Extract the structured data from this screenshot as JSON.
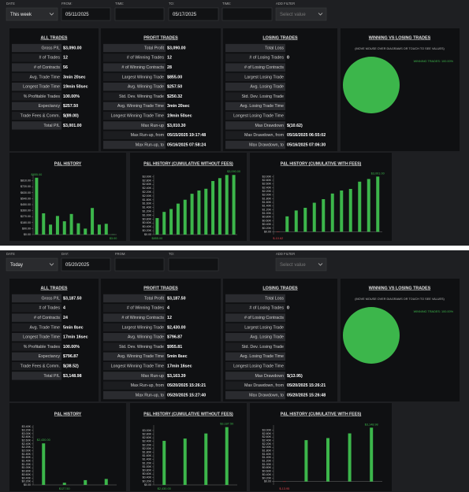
{
  "panels": [
    {
      "filters": [
        {
          "label": "DATE",
          "value": "This week"
        },
        {
          "label": "FROM:",
          "value": "05/11/2025"
        },
        {
          "label": "TIME:"
        },
        {
          "label": "TO:",
          "value": "05/17/2025"
        },
        {
          "label": "TIME:"
        },
        {
          "label": "ADD FILTER",
          "value": "Select value"
        }
      ],
      "tables": [
        {
          "title": "ALL TRADES",
          "rows": [
            [
              "Gross P/L",
              "$3,090.00"
            ],
            [
              "# of Trades",
              "12"
            ],
            [
              "# of Contracts",
              "56"
            ],
            [
              "Avg. Trade Time",
              "3min 20sec"
            ],
            [
              "Longest Trade Time",
              "19min 50sec"
            ],
            [
              "% Profitable Trades",
              "100.00%"
            ],
            [
              "Expectancy",
              "$257.50"
            ],
            [
              "Trade Fees & Comm.",
              "$(89.00)"
            ],
            [
              "Total P/L",
              "$3,001.00"
            ]
          ]
        },
        {
          "title": "PROFIT TRADES",
          "rows": [
            [
              "Total Profit",
              "$3,090.00"
            ],
            [
              "# of Winning Trades",
              "12"
            ],
            [
              "# of Winning Contracts",
              "28"
            ],
            [
              "Largest Winning Trade",
              "$855.00"
            ],
            [
              "Avg. Winning Trade",
              "$257.50"
            ],
            [
              "Std. Dev. Winning Trade",
              "$250.32"
            ],
            [
              "Avg. Winning Trade Time",
              "3min 20sec"
            ],
            [
              "Longest Winning Trade Time",
              "19min 50sec"
            ],
            [
              "Max Run-up",
              "$3,010.30"
            ],
            [
              "Max Run-up, from",
              "05/15/2025 19:17:48"
            ],
            [
              "Max Run-up, to",
              "05/16/2025 07:58:24"
            ]
          ]
        },
        {
          "title": "LOSING TRADES",
          "rows": [
            [
              "Total Loss"
            ],
            [
              "# of Losing Trades",
              "0"
            ],
            [
              "# of Losing Contracts"
            ],
            [
              "Largest Losing Trade"
            ],
            [
              "Avg. Losing Trade"
            ],
            [
              "Std. Dev. Losing Trade"
            ],
            [
              "Avg. Losing Trade Time"
            ],
            [
              "Longest Losing Trade Time"
            ],
            [
              "Max Drawdown",
              "$(10.62)"
            ],
            [
              "Max Drawdown, from",
              "05/16/2025 06:55:02"
            ],
            [
              "Max Drawdown, to",
              "05/16/2025 07:06:30"
            ]
          ]
        }
      ],
      "pie": {
        "title": "WINNING VS LOSING TRADES",
        "note": "(MOVE MOUSE OVER DIAGRAMS OR TOUCH TO SEE VALUES)",
        "legend": "WINNING TRADES: 100.00%",
        "value": 100,
        "color": "#3cb64b"
      },
      "charts": [
        {
          "type": "bar",
          "title": "P&L HISTORY",
          "values": [
            855,
            320,
            150,
            280,
            200,
            310,
            170,
            90,
            400,
            150,
            162,
            3
          ],
          "max_label": "$855.00",
          "min_label": "$3.00",
          "color": "#3cb64b",
          "ylim": [
            0,
            900
          ],
          "yticks": [
            {
              "value": 0,
              "label": "$0.00"
            },
            {
              "value": 90,
              "label": "$90.00"
            },
            {
              "value": 180,
              "label": "$180.00"
            },
            {
              "value": 270,
              "label": "$270.00"
            },
            {
              "value": 360,
              "label": "$360.00"
            },
            {
              "value": 450,
              "label": "$450.00"
            },
            {
              "value": 540,
              "label": "$540.00"
            },
            {
              "value": 630,
              "label": "$630.00"
            },
            {
              "value": 720,
              "label": "$720.00"
            },
            {
              "value": 810,
              "label": "$810.00"
            }
          ]
        },
        {
          "type": "bar",
          "title": "P&L HISTORY (CUMULATIVE WITHOUT FEES)",
          "values": [
            855,
            1175,
            1325,
            1605,
            1805,
            2115,
            2285,
            2375,
            2775,
            2925,
            3087,
            3090
          ],
          "max_label": "$3,090.00",
          "min_label": "$855.00",
          "color": "#3cb64b",
          "ylim": [
            0,
            3100
          ],
          "yticks": [
            {
              "value": 0,
              "label": "$0.00"
            },
            {
              "value": 200,
              "label": "$0.20K"
            },
            {
              "value": 400,
              "label": "$0.40K"
            },
            {
              "value": 600,
              "label": "$0.60K"
            },
            {
              "value": 800,
              "label": "$0.80K"
            },
            {
              "value": 1000,
              "label": "$1.00K"
            },
            {
              "value": 1200,
              "label": "$1.20K"
            },
            {
              "value": 1400,
              "label": "$1.40K"
            },
            {
              "value": 1600,
              "label": "$1.60K"
            },
            {
              "value": 1800,
              "label": "$1.80K"
            },
            {
              "value": 2000,
              "label": "$2.00K"
            },
            {
              "value": 2200,
              "label": "$2.20K"
            },
            {
              "value": 2400,
              "label": "$2.40K"
            },
            {
              "value": 2600,
              "label": "$2.60K"
            },
            {
              "value": 2800,
              "label": "$2.80K"
            },
            {
              "value": 3000,
              "label": "$3.00K"
            }
          ]
        },
        {
          "type": "bar",
          "title": "P&L HISTORY (CUMULATIVE WITH FEES)",
          "values": [
            -10.62,
            840,
            1160,
            1305,
            1580,
            1775,
            2080,
            2245,
            2330,
            2725,
            2870,
            3001
          ],
          "max_label": "$3,001.00",
          "min_label": "$-10.62",
          "color": "#3cb64b",
          "ylim": [
            -150,
            3100
          ],
          "yticks": [
            {
              "value": 0,
              "label": "$0.00"
            },
            {
              "value": 200,
              "label": "$0.20K"
            },
            {
              "value": 400,
              "label": "$0.40K"
            },
            {
              "value": 600,
              "label": "$0.60K"
            },
            {
              "value": 800,
              "label": "$0.80K"
            },
            {
              "value": 1000,
              "label": "$1.00K"
            },
            {
              "value": 1200,
              "label": "$1.20K"
            },
            {
              "value": 1400,
              "label": "$1.40K"
            },
            {
              "value": 1600,
              "label": "$1.60K"
            },
            {
              "value": 1800,
              "label": "$1.80K"
            },
            {
              "value": 2000,
              "label": "$2.00K"
            },
            {
              "value": 2200,
              "label": "$2.20K"
            },
            {
              "value": 2400,
              "label": "$2.40K"
            },
            {
              "value": 2600,
              "label": "$2.60K"
            },
            {
              "value": 2800,
              "label": "$2.80K"
            },
            {
              "value": 3000,
              "label": "$3.00K"
            }
          ]
        }
      ]
    },
    {
      "filters": [
        {
          "label": "DATE",
          "value": "Today"
        },
        {
          "label": "DAY:",
          "value": "05/20/2025"
        },
        {
          "label": "FROM:"
        },
        {
          "label": "TO:"
        },
        {
          "label": "ADD FILTER",
          "value": "Select value"
        }
      ],
      "tables": [
        {
          "title": "ALL TRADES",
          "rows": [
            [
              "Gross P/L",
              "$3,187.50"
            ],
            [
              "# of Trades",
              "4"
            ],
            [
              "# of Contracts",
              "24"
            ],
            [
              "Avg. Trade Time",
              "5min 8sec"
            ],
            [
              "Longest Trade Time",
              "17min 16sec"
            ],
            [
              "% Profitable Trades",
              "100.00%"
            ],
            [
              "Expectancy",
              "$796.87"
            ],
            [
              "Trade Fees & Comm.",
              "$(38.52)"
            ],
            [
              "Total P/L",
              "$3,148.98"
            ]
          ]
        },
        {
          "title": "PROFIT TRADES",
          "rows": [
            [
              "Total Profit",
              "$3,187.50"
            ],
            [
              "# of Winning Trades",
              "4"
            ],
            [
              "# of Winning Contracts",
              "12"
            ],
            [
              "Largest Winning Trade",
              "$2,430.00"
            ],
            [
              "Avg. Winning Trade",
              "$796.87"
            ],
            [
              "Std. Dev. Winning Trade",
              "$955.81"
            ],
            [
              "Avg. Winning Trade Time",
              "5min 8sec"
            ],
            [
              "Longest Winning Trade Time",
              "17min 16sec"
            ],
            [
              "Max Run-up",
              "$3,163.39"
            ],
            [
              "Max Run-up, from",
              "05/20/2025 15:26:21"
            ],
            [
              "Max Run-up, to",
              "05/20/2025 15:27:40"
            ]
          ]
        },
        {
          "title": "LOSING TRADES",
          "rows": [
            [
              "Total Loss"
            ],
            [
              "# of Losing Trades",
              "0"
            ],
            [
              "# of Losing Contracts"
            ],
            [
              "Largest Losing Trade"
            ],
            [
              "Avg. Losing Trade"
            ],
            [
              "Std. Dev. Losing Trade"
            ],
            [
              "Avg. Losing Trade Time"
            ],
            [
              "Longest Losing Trade Time"
            ],
            [
              "Max Drawdown",
              "$(13.95)"
            ],
            [
              "Max Drawdown, from",
              "05/20/2025 15:26:21"
            ],
            [
              "Max Drawdown, to",
              "05/20/2025 15:26:48"
            ]
          ]
        }
      ],
      "pie": {
        "title": "WINNING VS LOSING TRADES",
        "note": "(MOVE MOUSE OVER DIAGRAMS OR TOUCH TO SEE VALUES)",
        "legend": "WINNING TRADES: 100.00%",
        "value": 100,
        "color": "#3cb64b"
      },
      "charts": [
        {
          "type": "bar",
          "title": "P&L HISTORY",
          "values": [
            2430,
            127.5,
            280,
            350
          ],
          "max_label": "$2,430.00",
          "min_label": "$127.50",
          "color": "#3cb64b",
          "ylim": [
            0,
            3500
          ],
          "yticks": [
            {
              "value": 0,
              "label": "$0.00"
            },
            {
              "value": 200,
              "label": "$0.20K"
            },
            {
              "value": 400,
              "label": "$0.40K"
            },
            {
              "value": 600,
              "label": "$0.60K"
            },
            {
              "value": 800,
              "label": "$0.80K"
            },
            {
              "value": 1000,
              "label": "$1.00K"
            },
            {
              "value": 1200,
              "label": "$1.20K"
            },
            {
              "value": 1400,
              "label": "$1.40K"
            },
            {
              "value": 1600,
              "label": "$1.60K"
            },
            {
              "value": 1800,
              "label": "$1.80K"
            },
            {
              "value": 2000,
              "label": "$2.00K"
            },
            {
              "value": 2200,
              "label": "$2.20K"
            },
            {
              "value": 2400,
              "label": "$2.40K"
            },
            {
              "value": 2600,
              "label": "$2.60K"
            },
            {
              "value": 2800,
              "label": "$2.80K"
            },
            {
              "value": 3000,
              "label": "$3.00K"
            },
            {
              "value": 3200,
              "label": "$3.20K"
            },
            {
              "value": 3400,
              "label": "$3.40K"
            }
          ]
        },
        {
          "type": "bar",
          "title": "P&L HISTORY (CUMULATIVE WITHOUT FEES)",
          "values": [
            2430,
            2557.5,
            2837.5,
            3187.5
          ],
          "max_label": "$3,187.50",
          "min_label": "$2,430.00",
          "color": "#3cb64b",
          "ylim": [
            0,
            3300
          ],
          "yticks": [
            {
              "value": 0,
              "label": "$0.00"
            },
            {
              "value": 200,
              "label": "$0.20K"
            },
            {
              "value": 400,
              "label": "$0.40K"
            },
            {
              "value": 600,
              "label": "$0.60K"
            },
            {
              "value": 800,
              "label": "$0.80K"
            },
            {
              "value": 1000,
              "label": "$1.00K"
            },
            {
              "value": 1200,
              "label": "$1.20K"
            },
            {
              "value": 1400,
              "label": "$1.40K"
            },
            {
              "value": 1600,
              "label": "$1.60K"
            },
            {
              "value": 1800,
              "label": "$1.80K"
            },
            {
              "value": 2000,
              "label": "$2.00K"
            },
            {
              "value": 2200,
              "label": "$2.20K"
            },
            {
              "value": 2400,
              "label": "$2.40K"
            },
            {
              "value": 2600,
              "label": "$2.60K"
            },
            {
              "value": 2800,
              "label": "$2.80K"
            },
            {
              "value": 3000,
              "label": "$3.00K"
            }
          ]
        },
        {
          "type": "bar",
          "title": "P&L HISTORY (CUMULATIVE WITH FEES)",
          "values": [
            -13.95,
            2420,
            2540,
            2815,
            3148.98
          ],
          "max_label": "$3,148.98",
          "min_label": "$-13.95",
          "color": "#3cb64b",
          "ylim": [
            -200,
            3300
          ],
          "yticks": [
            {
              "value": 0,
              "label": "$0.00"
            },
            {
              "value": 200,
              "label": "$0.20K"
            },
            {
              "value": 400,
              "label": "$0.40K"
            },
            {
              "value": 600,
              "label": "$0.60K"
            },
            {
              "value": 800,
              "label": "$0.80K"
            },
            {
              "value": 1000,
              "label": "$1.00K"
            },
            {
              "value": 1200,
              "label": "$1.20K"
            },
            {
              "value": 1400,
              "label": "$1.40K"
            },
            {
              "value": 1600,
              "label": "$1.60K"
            },
            {
              "value": 1800,
              "label": "$1.80K"
            },
            {
              "value": 2000,
              "label": "$2.00K"
            },
            {
              "value": 2200,
              "label": "$2.20K"
            },
            {
              "value": 2400,
              "label": "$2.40K"
            },
            {
              "value": 2600,
              "label": "$2.60K"
            },
            {
              "value": 2800,
              "label": "$2.80K"
            },
            {
              "value": 3000,
              "label": "$3.00K"
            }
          ]
        }
      ]
    }
  ]
}
